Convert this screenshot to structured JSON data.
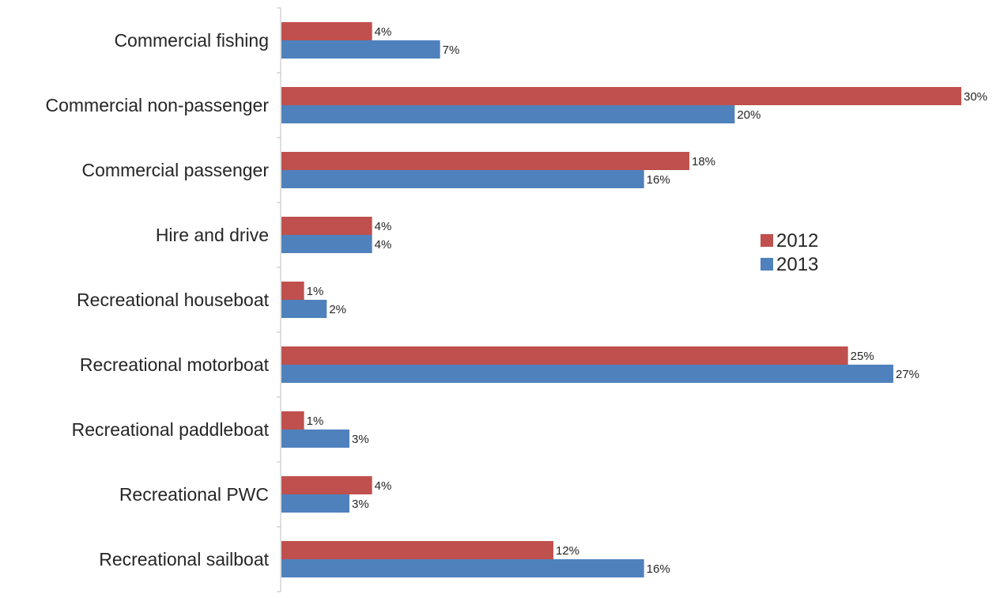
{
  "chart_data": {
    "type": "bar",
    "orientation": "horizontal",
    "categories": [
      "Commercial fishing",
      "Commercial non-passenger",
      "Commercial passenger",
      "Hire and drive",
      "Recreational houseboat",
      "Recreational motorboat",
      "Recreational paddleboat",
      "Recreational PWC",
      "Recreational sailboat"
    ],
    "series": [
      {
        "name": "2012",
        "color": "#c0504d",
        "values": [
          4,
          30,
          18,
          4,
          1,
          25,
          1,
          4,
          12
        ],
        "labels": [
          "4%",
          "30%",
          "18%",
          "4%",
          "1%",
          "25%",
          "1%",
          "4%",
          "12%"
        ]
      },
      {
        "name": "2013",
        "color": "#4f81bd",
        "values": [
          7,
          20,
          16,
          4,
          2,
          27,
          3,
          3,
          16
        ],
        "labels": [
          "7%",
          "20%",
          "16%",
          "4%",
          "2%",
          "27%",
          "3%",
          "3%",
          "16%"
        ]
      }
    ],
    "unit": "%",
    "xlim": [
      0,
      30
    ],
    "grid": false,
    "legend_position": "right"
  }
}
